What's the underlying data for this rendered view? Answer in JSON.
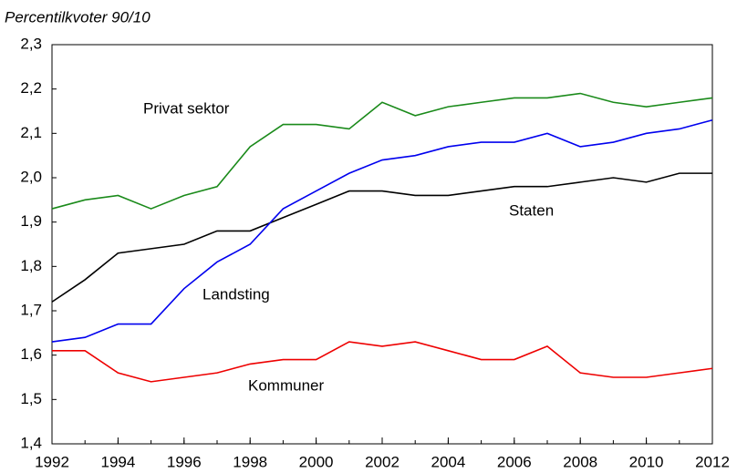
{
  "chart_data": {
    "type": "line",
    "title": "Percentilkvoter 90/10",
    "x": [
      1992,
      1993,
      1994,
      1995,
      1996,
      1997,
      1998,
      1999,
      2000,
      2001,
      2002,
      2003,
      2004,
      2005,
      2006,
      2007,
      2008,
      2009,
      2010,
      2011,
      2012
    ],
    "xlim": [
      1992,
      2012
    ],
    "xticks": [
      1992,
      1994,
      1996,
      1998,
      2000,
      2002,
      2004,
      2006,
      2008,
      2010,
      2012
    ],
    "ylim": [
      1.4,
      2.3
    ],
    "yticks": [
      {
        "value": 1.4,
        "label": "1,4"
      },
      {
        "value": 1.5,
        "label": "1,5"
      },
      {
        "value": 1.6,
        "label": "1,6"
      },
      {
        "value": 1.7,
        "label": "1,7"
      },
      {
        "value": 1.8,
        "label": "1,8"
      },
      {
        "value": 1.9,
        "label": "1,9"
      },
      {
        "value": 2.0,
        "label": "2,0"
      },
      {
        "value": 2.1,
        "label": "2,1"
      },
      {
        "value": 2.2,
        "label": "2,2"
      },
      {
        "value": 2.3,
        "label": "2,3"
      }
    ],
    "grid": false,
    "series": [
      {
        "name": "Privat sektor",
        "color": "#1a8a1a",
        "values": [
          1.93,
          1.95,
          1.96,
          1.93,
          1.96,
          1.98,
          2.07,
          2.12,
          2.12,
          2.11,
          2.17,
          2.14,
          2.16,
          2.17,
          2.18,
          2.18,
          2.19,
          2.17,
          2.16,
          2.17,
          2.18
        ]
      },
      {
        "name": "Staten",
        "color": "#000000",
        "values": [
          1.72,
          1.77,
          1.83,
          1.84,
          1.85,
          1.88,
          1.88,
          1.91,
          1.94,
          1.97,
          1.97,
          1.96,
          1.96,
          1.97,
          1.98,
          1.98,
          1.99,
          2.0,
          1.99,
          2.01,
          2.01
        ]
      },
      {
        "name": "Landsting",
        "color": "#0000ee",
        "values": [
          1.63,
          1.64,
          1.67,
          1.67,
          1.75,
          1.81,
          1.85,
          1.93,
          1.97,
          2.01,
          2.04,
          2.05,
          2.07,
          2.08,
          2.08,
          2.1,
          2.07,
          2.08,
          2.1,
          2.11,
          2.13
        ]
      },
      {
        "name": "Kommuner",
        "color": "#ee0000",
        "values": [
          1.61,
          1.61,
          1.56,
          1.54,
          1.55,
          1.56,
          1.58,
          1.59,
          1.59,
          1.63,
          1.62,
          1.63,
          1.61,
          1.59,
          1.59,
          1.62,
          1.56,
          1.55,
          1.55,
          1.56,
          1.57
        ]
      }
    ]
  }
}
